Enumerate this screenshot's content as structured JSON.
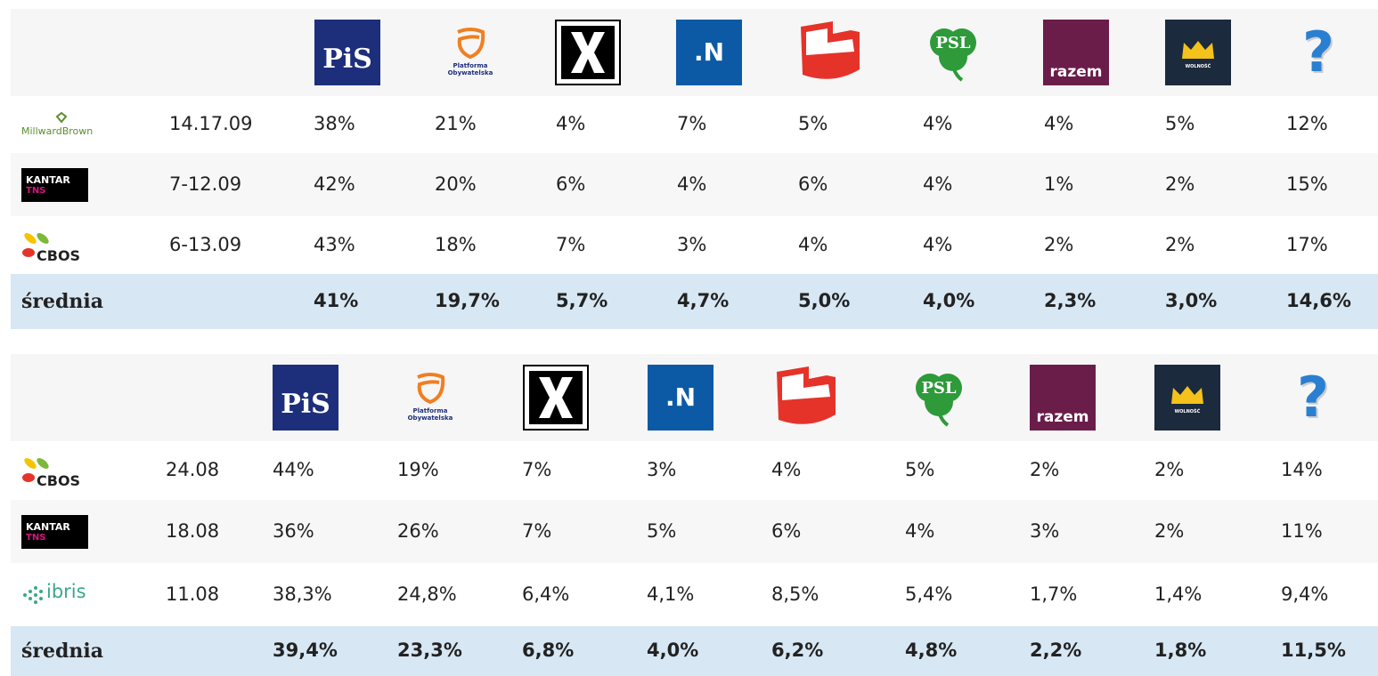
{
  "logos": {
    "pis": "PiS",
    "po": "Platforma Obywatelska",
    "n": ".N",
    "psl": "PSL",
    "razem": "razem",
    "wolnosc": "WOLNOŚĆ",
    "question": "?"
  },
  "tables": [
    {
      "rows": [
        {
          "pollster": [
            "MillwardBrown"
          ],
          "date": "14.17.09",
          "values": [
            "38%",
            "21%",
            "4%",
            "7%",
            "5%",
            "4%",
            "4%",
            "5%",
            "12%"
          ]
        },
        {
          "pollster": [
            "KANTAR",
            "TNS"
          ],
          "date": "7-12.09",
          "values": [
            "42%",
            "20%",
            "6%",
            "4%",
            "6%",
            "4%",
            "1%",
            "2%",
            "15%"
          ]
        },
        {
          "pollster": [
            "CBOS"
          ],
          "date": "6-13.09",
          "values": [
            "43%",
            "18%",
            "7%",
            "3%",
            "4%",
            "4%",
            "2%",
            "2%",
            "17%"
          ]
        }
      ],
      "average": {
        "label": "średnia",
        "values": [
          "41%",
          "19,7%",
          "5,7%",
          "4,7%",
          "5,0%",
          "4,0%",
          "2,3%",
          "3,0%",
          "14,6%"
        ]
      }
    },
    {
      "rows": [
        {
          "pollster": [
            "CBOS"
          ],
          "date": "24.08",
          "values": [
            "44%",
            "19%",
            "7%",
            "3%",
            "4%",
            "5%",
            "2%",
            "2%",
            "14%"
          ]
        },
        {
          "pollster": [
            "KANTAR",
            "TNS"
          ],
          "date": "18.08",
          "values": [
            "36%",
            "26%",
            "7%",
            "5%",
            "6%",
            "4%",
            "3%",
            "2%",
            "11%"
          ]
        },
        {
          "pollster": [
            "ibris"
          ],
          "date": "11.08",
          "values": [
            "38,3%",
            "24,8%",
            "6,4%",
            "4,1%",
            "8,5%",
            "5,4%",
            "1,7%",
            "1,4%",
            "9,4%"
          ]
        }
      ],
      "average": {
        "label": "średnia",
        "values": [
          "39,4%",
          "23,3%",
          "6,8%",
          "4,0%",
          "6,2%",
          "4,8%",
          "2,2%",
          "1,8%",
          "11,5%"
        ]
      }
    }
  ]
}
